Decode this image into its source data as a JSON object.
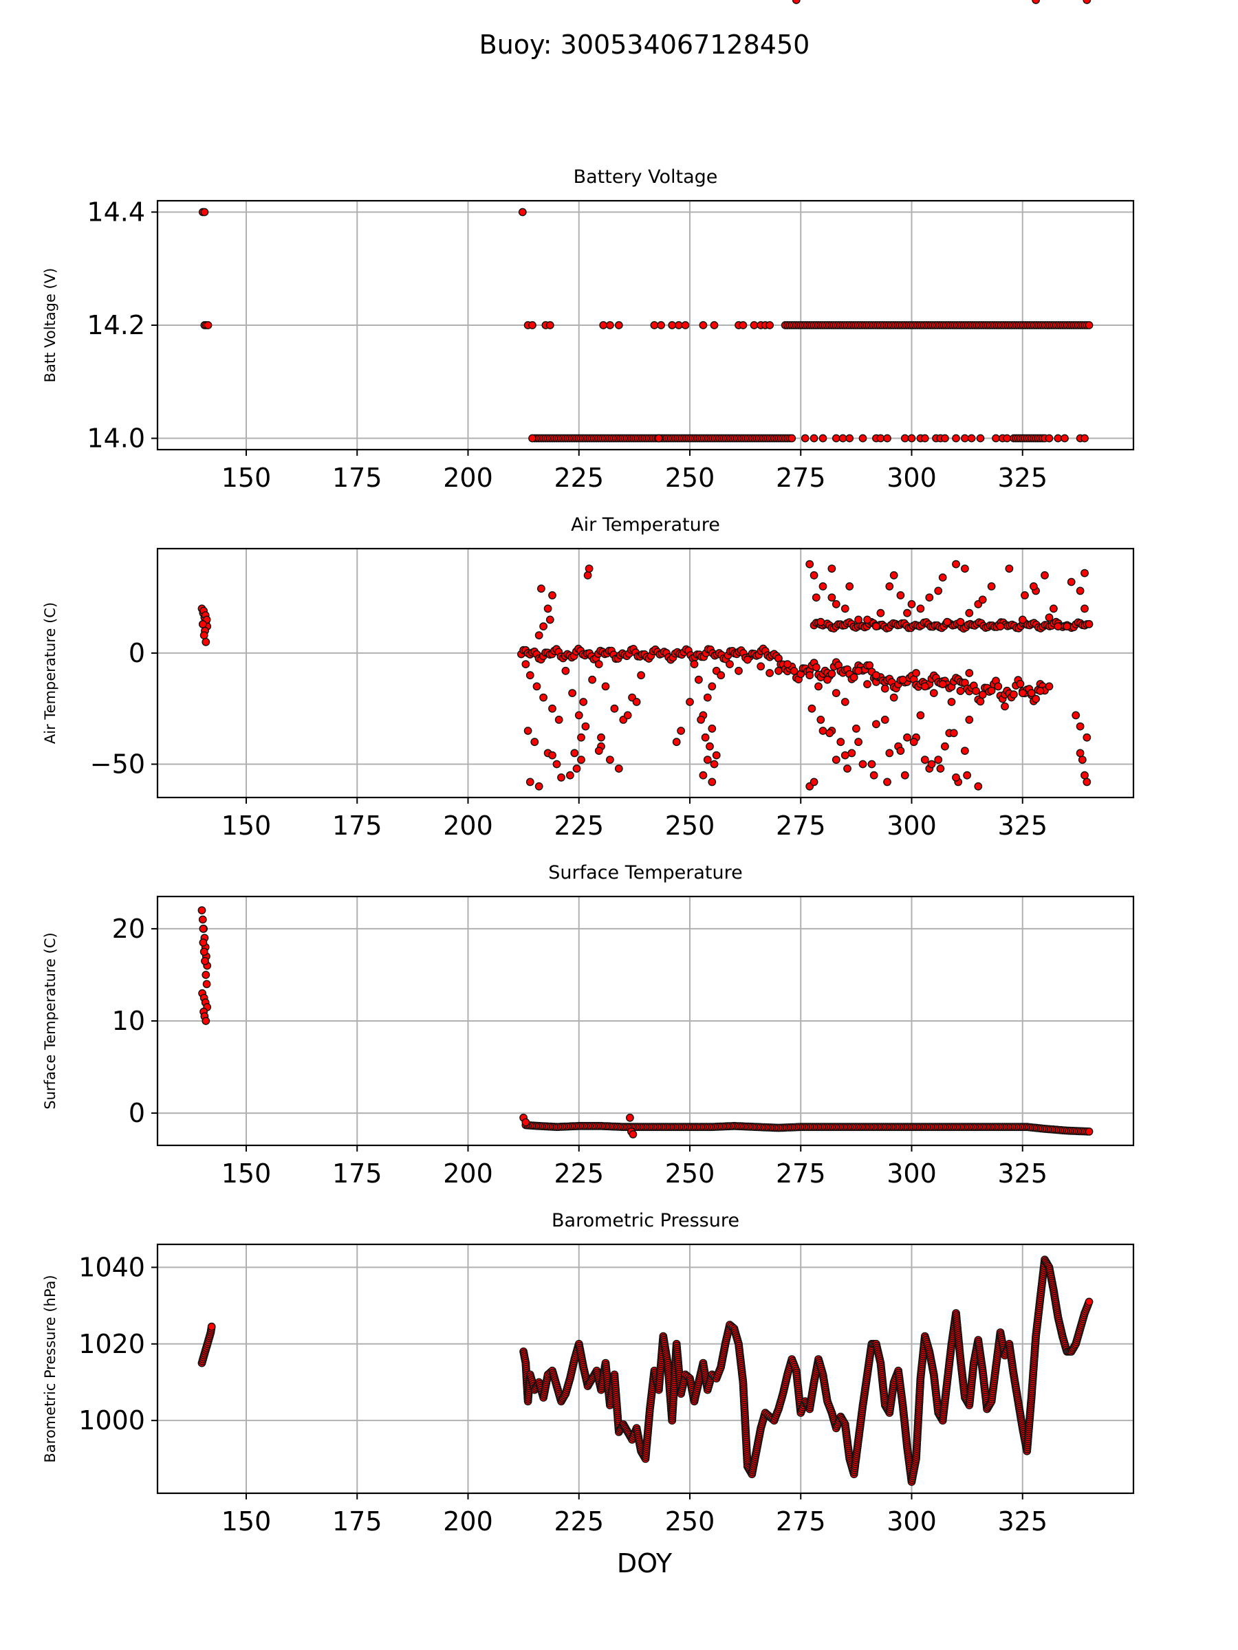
{
  "figure": {
    "suptitle": "Buoy: 300534067128450",
    "xlabel": "DOY"
  },
  "chart_data": [
    {
      "type": "scatter",
      "title": "Battery Voltage",
      "xlabel": "",
      "ylabel": "Batt Voltage (V)",
      "xlim": [
        130,
        350
      ],
      "ylim": [
        13.98,
        14.42
      ],
      "xticks": [
        150,
        175,
        200,
        225,
        250,
        275,
        300,
        325
      ],
      "yticks": [
        14.0,
        14.2,
        14.4
      ],
      "ytick_labels": [
        "14.0",
        "14.2",
        "14.4"
      ],
      "grid": true,
      "marker_color": "#ff0000",
      "points_x": [
        140.2,
        140.6,
        212.3,
        140.6,
        141.0,
        141.4,
        213.5,
        214.5,
        217.5,
        218.5,
        230.5,
        232,
        234,
        242,
        243.5,
        246,
        247.5,
        249,
        253,
        255.5,
        261,
        262,
        264.5,
        266,
        267,
        268,
        214.5,
        243,
        276,
        278,
        280,
        283,
        284.5,
        286,
        289,
        292,
        293,
        294.5,
        298.5,
        300,
        302,
        303,
        305.5,
        306.5,
        307.5,
        310,
        312,
        313.5,
        315.5,
        319,
        320.5,
        321.5,
        331,
        333,
        334.5,
        338,
        339
      ],
      "points_y": [
        14.4,
        14.4,
        14.4,
        14.2,
        14.2,
        14.2,
        14.2,
        14.2,
        14.2,
        14.2,
        14.2,
        14.2,
        14.2,
        14.2,
        14.2,
        14.2,
        14.2,
        14.2,
        14.2,
        14.2,
        14.2,
        14.2,
        14.2,
        14.2,
        14.2,
        14.2,
        14.0,
        14.0,
        14.0,
        14.0,
        14.0,
        14.0,
        14.0,
        14.0,
        14.0,
        14.0,
        14.0,
        14.0,
        14.0,
        14.0,
        14.0,
        14.0,
        14.0,
        14.0,
        14.0,
        14.0,
        14.0,
        14.0,
        14.0,
        14.0,
        14.0,
        14.0,
        14.0,
        14.0,
        14.0,
        14.0,
        14.0
      ],
      "dense_runs": [
        {
          "x_start": 271.5,
          "x_end": 340,
          "y": 14.2
        },
        {
          "x_start": 215,
          "x_end": 273,
          "y": 14.0
        },
        {
          "x_start": 323,
          "x_end": 330,
          "y": 14.0
        }
      ]
    },
    {
      "type": "scatter",
      "title": "Air Temperature",
      "xlabel": "",
      "ylabel": "Air Temperature (C)",
      "xlim": [
        130,
        350
      ],
      "ylim": [
        -65,
        47
      ],
      "xticks": [
        150,
        175,
        200,
        225,
        250,
        275,
        300,
        325
      ],
      "yticks": [
        0,
        -50
      ],
      "ytick_labels": [
        "0",
        "−50"
      ],
      "grid": true,
      "marker_color": "#ff0000",
      "points_x": [
        140,
        140.3,
        140.6,
        140.9,
        141.2,
        140.4,
        140.8,
        141.1,
        140.2,
        140.7,
        140.5,
        140.9,
        216,
        217,
        218,
        219,
        216.5,
        218.5,
        227,
        227.3,
        213,
        214,
        215.5,
        217,
        219,
        220.5,
        222,
        223.5,
        225,
        226,
        228,
        229.5,
        231,
        233,
        235,
        237,
        239,
        213.5,
        215,
        218,
        220,
        223,
        224,
        225.5,
        226.5,
        230,
        232,
        236,
        238,
        214,
        216,
        219,
        221,
        224.5,
        225.5,
        229.5,
        230,
        234,
        247,
        248,
        250,
        252,
        253,
        254,
        255,
        256,
        251,
        253.5,
        255.5,
        253,
        254.5,
        252.5,
        255,
        256,
        254,
        255,
        257,
        259,
        261,
        263,
        266,
        268,
        272,
        277,
        279,
        281,
        283,
        285,
        288,
        290,
        292,
        294,
        296,
        298,
        301,
        303,
        305,
        307,
        309,
        311,
        313,
        277.5,
        279.5,
        282,
        284,
        286.5,
        289,
        291.5,
        294,
        297,
        299,
        302,
        304,
        306,
        308.5,
        310.5,
        312,
        277,
        280,
        283,
        285.5,
        288,
        292,
        295,
        298.5,
        301,
        304.5,
        307.5,
        310,
        313,
        278,
        281.5,
        285,
        287.5,
        291,
        294.5,
        297.5,
        300.5,
        303,
        306.5,
        309.5,
        312.5,
        315,
        321,
        325,
        327,
        329,
        331,
        277,
        278,
        280,
        282,
        285,
        288,
        292,
        295,
        299,
        304,
        308,
        312,
        315,
        320,
        325,
        328,
        330,
        332,
        335,
        338,
        339,
        278.5,
        282,
        290,
        296,
        300,
        306,
        310,
        313,
        318,
        325.5,
        331,
        336,
        339,
        279.5,
        283,
        286,
        293,
        297.5,
        302,
        307,
        311,
        316,
        322,
        327.5,
        333,
        337,
        338,
        339.5,
        338.5,
        339.5,
        338,
        339,
        339.5,
        274,
        328
      ],
      "points_y": [
        20,
        18,
        16,
        14,
        12,
        19,
        17,
        15,
        13,
        10,
        8,
        5,
        8,
        12,
        20,
        26,
        29,
        15,
        35,
        38,
        -5,
        -10,
        -15,
        -20,
        -25,
        -30,
        -8,
        -18,
        -28,
        -22,
        -12,
        -5,
        -15,
        -25,
        -30,
        -20,
        -10,
        -35,
        -40,
        -45,
        -50,
        -55,
        -45,
        -38,
        -33,
        -42,
        -48,
        -28,
        -22,
        -58,
        -60,
        -46,
        -56,
        -52,
        -48,
        -44,
        -38,
        -52,
        -40,
        -35,
        -22,
        -12,
        -28,
        -48,
        -58,
        -46,
        -5,
        -38,
        -50,
        -55,
        -42,
        -30,
        -15,
        -8,
        -20,
        -34,
        -10,
        -5,
        -8,
        -3,
        -6,
        -9,
        -5,
        -10,
        -15,
        -12,
        -18,
        -22,
        -8,
        -14,
        -10,
        -16,
        -20,
        -12,
        -9,
        -15,
        -18,
        -14,
        -22,
        -17,
        -9,
        -25,
        -30,
        -35,
        -40,
        -45,
        -50,
        -55,
        -30,
        -42,
        -38,
        -28,
        -52,
        -48,
        -36,
        -58,
        -44,
        -60,
        -35,
        -48,
        -52,
        -40,
        -32,
        -45,
        -55,
        -38,
        -50,
        -42,
        -56,
        -30,
        -58,
        -36,
        -46,
        -34,
        -50,
        -58,
        -44,
        -40,
        -48,
        -52,
        -36,
        -55,
        -60,
        -24,
        -18,
        -18,
        -17,
        -15,
        40,
        35,
        30,
        25,
        20,
        15,
        12,
        30,
        18,
        25,
        14,
        38,
        22,
        12,
        15,
        28,
        35,
        20,
        12,
        28,
        36,
        25,
        38,
        15,
        35,
        22,
        28,
        40,
        18,
        30,
        26,
        16,
        32,
        20,
        14,
        22,
        30,
        18,
        26,
        20,
        34,
        14,
        24,
        38,
        30,
        12,
        -28,
        -33,
        -38,
        -48,
        -58,
        -45,
        -55
      ],
      "dense_runs": [
        {
          "x_start": 212,
          "x_end": 270,
          "y_from": -3,
          "y_to": 2
        },
        {
          "x_start": 270,
          "x_end": 292,
          "y_from": -12,
          "y_to": -4
        },
        {
          "x_start": 292,
          "x_end": 311,
          "y_from": -16,
          "y_to": -10
        },
        {
          "x_start": 311,
          "x_end": 330,
          "y_from": -22,
          "y_to": -12
        },
        {
          "x_start": 278,
          "x_end": 340,
          "y_from": 11,
          "y_to": 14
        }
      ]
    },
    {
      "type": "scatter",
      "title": "Surface Temperature",
      "xlabel": "",
      "ylabel": "Surface Temperature (C)",
      "xlim": [
        130,
        350
      ],
      "ylim": [
        -3.5,
        23.5
      ],
      "xticks": [
        150,
        175,
        200,
        225,
        250,
        275,
        300,
        325
      ],
      "yticks": [
        0,
        10,
        20
      ],
      "ytick_labels": [
        "0",
        "10",
        "20"
      ],
      "grid": true,
      "marker_color": "#ff0000",
      "points_x": [
        140,
        140.2,
        140.4,
        140.6,
        140.8,
        141,
        141.2,
        140.3,
        140.5,
        140.7,
        140.9,
        141.1,
        140.1,
        140.5,
        140.8,
        141.2,
        140.4,
        140.6,
        140.9,
        140.3,
        212.5,
        213,
        236.5,
        236.8,
        237.2
      ],
      "points_y": [
        22,
        21,
        20,
        19,
        18,
        17,
        16,
        18.5,
        17.5,
        16.5,
        15,
        14,
        13,
        12.5,
        12,
        11.5,
        11,
        10.5,
        10,
        20,
        -0.5,
        -1,
        -0.5,
        -2,
        -2.3
      ],
      "series_line": {
        "x": [
          213,
          216,
          220,
          225,
          230,
          235,
          240,
          245,
          250,
          255,
          260,
          265,
          270,
          275,
          280,
          290,
          300,
          310,
          320,
          326,
          330,
          335,
          340
        ],
        "y": [
          -1.3,
          -1.4,
          -1.5,
          -1.4,
          -1.4,
          -1.5,
          -1.5,
          -1.5,
          -1.5,
          -1.5,
          -1.4,
          -1.5,
          -1.6,
          -1.5,
          -1.5,
          -1.5,
          -1.5,
          -1.5,
          -1.5,
          -1.5,
          -1.7,
          -1.9,
          -2.0
        ]
      }
    },
    {
      "type": "scatter",
      "title": "Barometric Pressure",
      "xlabel": "DOY",
      "ylabel": "Barometric Pressure (hPa)",
      "xlim": [
        130,
        350
      ],
      "ylim": [
        981,
        1046
      ],
      "xticks": [
        150,
        175,
        200,
        225,
        250,
        275,
        300,
        325
      ],
      "yticks": [
        1000,
        1020,
        1040
      ],
      "ytick_labels": [
        "1000",
        "1020",
        "1040"
      ],
      "grid": true,
      "marker_color": "#ff0000",
      "series_line": {
        "x": [
          140,
          140.5,
          141,
          141.5,
          142,
          142.2
        ],
        "y": [
          1015,
          1017,
          1019,
          1021,
          1023,
          1024.5
        ]
      },
      "series_line_2": {
        "x": [
          212.5,
          213,
          213.5,
          214,
          215,
          216,
          217,
          218,
          219,
          220,
          221,
          222,
          223,
          224,
          225,
          226,
          227,
          228,
          229,
          230,
          231,
          232,
          233,
          234,
          235,
          236,
          237,
          238,
          239,
          240,
          241,
          242,
          243,
          244,
          245,
          246,
          247,
          248,
          249,
          250,
          251,
          252,
          253,
          254,
          255,
          256,
          257,
          258,
          259,
          260,
          261,
          262,
          263,
          264,
          265,
          266,
          267,
          268,
          269,
          270,
          271,
          272,
          273,
          274,
          275,
          276,
          277,
          278,
          279,
          280,
          281,
          282,
          283,
          284,
          285,
          286,
          287,
          288,
          289,
          290,
          291,
          292,
          293,
          294,
          295,
          296,
          297,
          298,
          299,
          300,
          301,
          302,
          303,
          304,
          305,
          306,
          307,
          308,
          309,
          310,
          311,
          312,
          313,
          314,
          315,
          316,
          317,
          318,
          319,
          320,
          321,
          322,
          323,
          324,
          325,
          326,
          327,
          328,
          329,
          330,
          331,
          332,
          333,
          334,
          335,
          336,
          337,
          338,
          339,
          340
        ],
        "y": [
          1018,
          1015,
          1005,
          1012,
          1008,
          1010,
          1006,
          1012,
          1013,
          1009,
          1005,
          1007,
          1011,
          1016,
          1020,
          1014,
          1009,
          1011,
          1013,
          1008,
          1015,
          1004,
          1012,
          997,
          999,
          997,
          995,
          998,
          992,
          990,
          1003,
          1013,
          1008,
          1022,
          1015,
          1000,
          1020,
          1007,
          1012,
          1011,
          1005,
          1010,
          1015,
          1008,
          1012,
          1011,
          1014,
          1020,
          1025,
          1024,
          1020,
          1010,
          988,
          986,
          992,
          998,
          1002,
          1001,
          1000,
          1003,
          1007,
          1012,
          1016,
          1013,
          1002,
          1005,
          1003,
          1010,
          1016,
          1012,
          1005,
          1002,
          998,
          1001,
          999,
          990,
          986,
          995,
          1004,
          1012,
          1020,
          1020,
          1015,
          1004,
          1002,
          1010,
          1013,
          1004,
          993,
          984,
          990,
          1011,
          1022,
          1018,
          1012,
          1002,
          1000,
          1010,
          1020,
          1028,
          1016,
          1006,
          1004,
          1015,
          1021,
          1013,
          1003,
          1005,
          1014,
          1023,
          1017,
          1020,
          1012,
          1005,
          998,
          992,
          1006,
          1022,
          1032,
          1042,
          1040,
          1034,
          1027,
          1022,
          1018,
          1018,
          1020,
          1024,
          1028,
          1031
        ]
      }
    }
  ]
}
